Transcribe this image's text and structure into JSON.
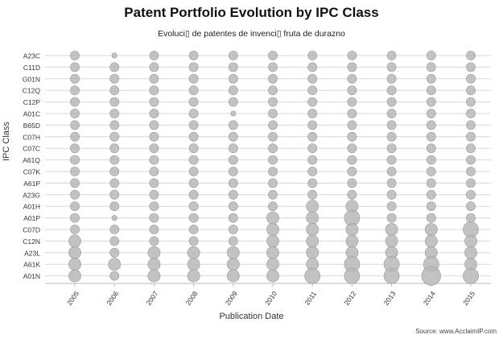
{
  "chart_data": {
    "type": "scatter",
    "title": "Patent Portfolio Evolution by IPC Class",
    "subtitle": "Evoluci▯ de patentes de invenci▯ fruta de durazno",
    "xlabel": "Publication Date",
    "ylabel": "IPC Class",
    "source": "Source: www.AcclaimIP.com",
    "x_categories": [
      "2005",
      "2006",
      "2007",
      "2008",
      "2009",
      "2010",
      "2011",
      "2012",
      "2013",
      "2014",
      "2015"
    ],
    "y_categories": [
      "A23C",
      "C11D",
      "G01N",
      "C12Q",
      "C12P",
      "A01C",
      "B65D",
      "C07H",
      "C07C",
      "A61Q",
      "C07K",
      "A61P",
      "A23G",
      "A01H",
      "A01P",
      "C07D",
      "C12N",
      "A23L",
      "A61K",
      "A01N"
    ],
    "size_scale": "relative 1-5",
    "grid": "horizontal",
    "marker_color": "#b8b8b8",
    "values": [
      [
        2,
        1,
        2,
        2,
        2,
        2,
        2,
        2,
        2,
        2,
        2
      ],
      [
        2,
        2,
        2,
        2,
        2,
        2,
        2,
        2,
        2,
        2,
        2
      ],
      [
        2,
        2,
        2,
        2,
        2,
        2,
        2,
        2,
        2,
        2,
        2
      ],
      [
        2,
        2,
        2,
        2,
        2,
        2,
        2,
        2,
        2,
        2,
        2
      ],
      [
        2,
        2,
        2,
        2,
        2,
        2,
        2,
        2,
        2,
        2,
        2
      ],
      [
        2,
        2,
        2,
        2,
        1,
        2,
        2,
        2,
        2,
        2,
        2
      ],
      [
        2,
        2,
        2,
        2,
        2,
        2,
        2,
        2,
        2,
        2,
        2
      ],
      [
        2,
        2,
        2,
        2,
        2,
        2,
        2,
        2,
        2,
        2,
        2
      ],
      [
        2,
        2,
        2,
        2,
        2,
        2,
        2,
        2,
        2,
        2,
        2
      ],
      [
        2,
        2,
        2,
        2,
        2,
        2,
        2,
        2,
        2,
        2,
        2
      ],
      [
        2,
        2,
        2,
        2,
        2,
        2,
        2,
        2,
        2,
        2,
        2
      ],
      [
        2,
        2,
        2,
        2,
        2,
        2,
        2,
        2,
        2,
        2,
        2
      ],
      [
        2,
        2,
        2,
        2,
        2,
        2,
        2,
        2,
        2,
        2,
        2
      ],
      [
        2,
        2,
        2,
        2,
        2,
        2,
        3,
        3,
        2,
        2,
        2
      ],
      [
        2,
        1,
        2,
        2,
        2,
        3,
        3,
        4,
        2,
        2,
        2
      ],
      [
        2,
        2,
        2,
        2,
        2,
        3,
        3,
        3,
        3,
        3,
        4
      ],
      [
        3,
        2,
        2,
        2,
        2,
        3,
        3,
        3,
        3,
        3,
        3
      ],
      [
        3,
        2,
        3,
        3,
        3,
        3,
        3,
        3,
        3,
        3,
        3
      ],
      [
        3,
        3,
        3,
        3,
        3,
        3,
        3,
        4,
        4,
        4,
        3
      ],
      [
        3,
        2,
        3,
        3,
        3,
        3,
        4,
        4,
        4,
        5,
        4
      ]
    ]
  }
}
